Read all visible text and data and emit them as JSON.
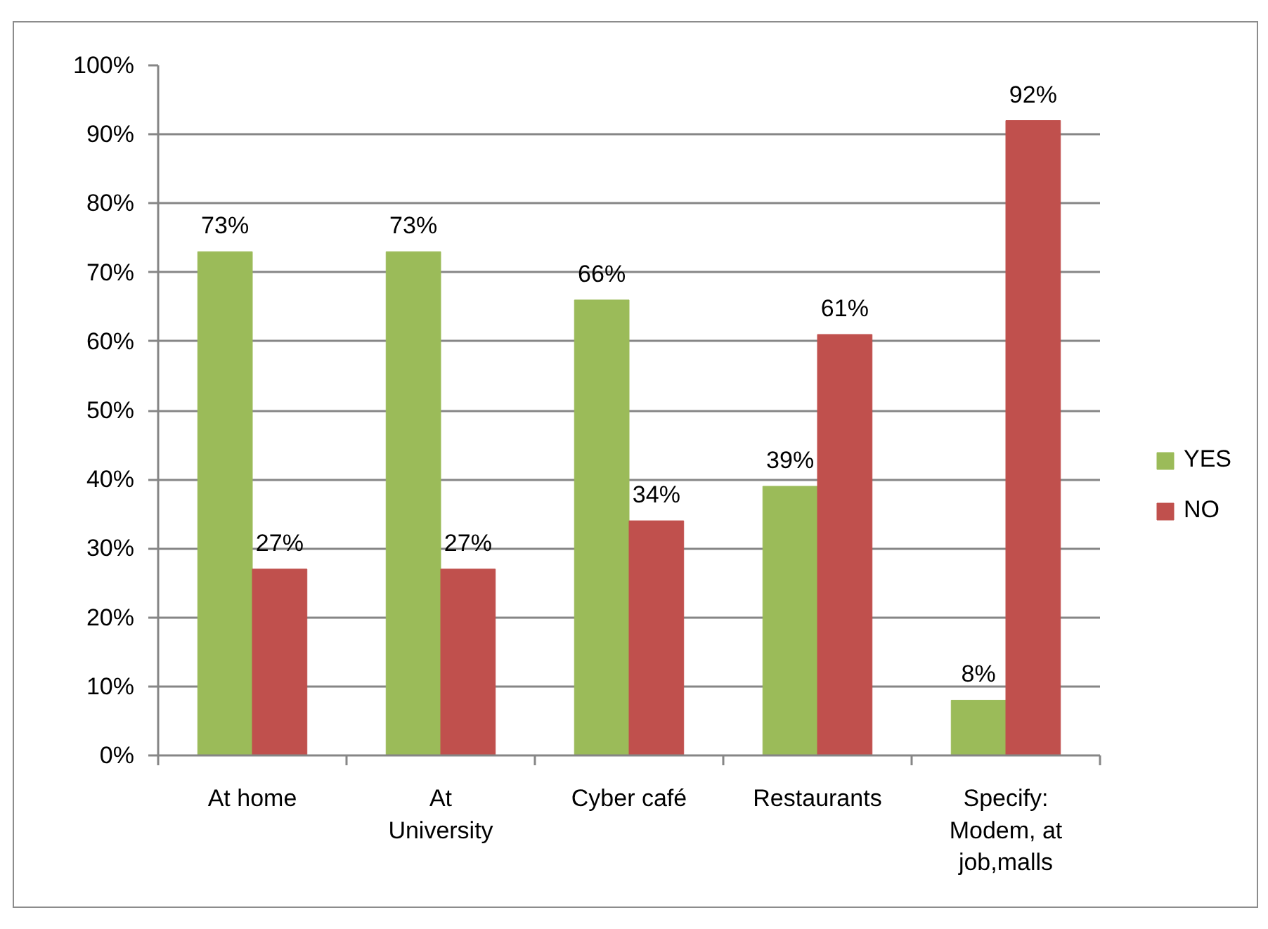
{
  "chart_data": {
    "type": "bar",
    "categories": [
      "At home",
      "At University",
      "Cyber café",
      "Restaurants",
      "Specify: Modem, at job,malls"
    ],
    "series": [
      {
        "name": "YES",
        "color": "#9bbb59",
        "values": [
          73,
          73,
          66,
          39,
          8
        ],
        "value_labels": [
          "73%",
          "73%",
          "66%",
          "39%",
          "8%"
        ]
      },
      {
        "name": "NO",
        "color": "#c0504d",
        "values": [
          27,
          27,
          34,
          61,
          92
        ],
        "value_labels": [
          "27%",
          "27%",
          "34%",
          "61%",
          "92%"
        ]
      }
    ],
    "ylim": [
      0,
      100
    ],
    "yticks": [
      {
        "value": 0,
        "label": "0%"
      },
      {
        "value": 10,
        "label": "10%"
      },
      {
        "value": 20,
        "label": "20%"
      },
      {
        "value": 30,
        "label": "30%"
      },
      {
        "value": 40,
        "label": "40%"
      },
      {
        "value": 50,
        "label": "50%"
      },
      {
        "value": 60,
        "label": "60%"
      },
      {
        "value": 70,
        "label": "70%"
      },
      {
        "value": 80,
        "label": "80%"
      },
      {
        "value": 90,
        "label": "90%"
      },
      {
        "value": 100,
        "label": "100%"
      }
    ],
    "grid": "y",
    "legend": "right"
  }
}
